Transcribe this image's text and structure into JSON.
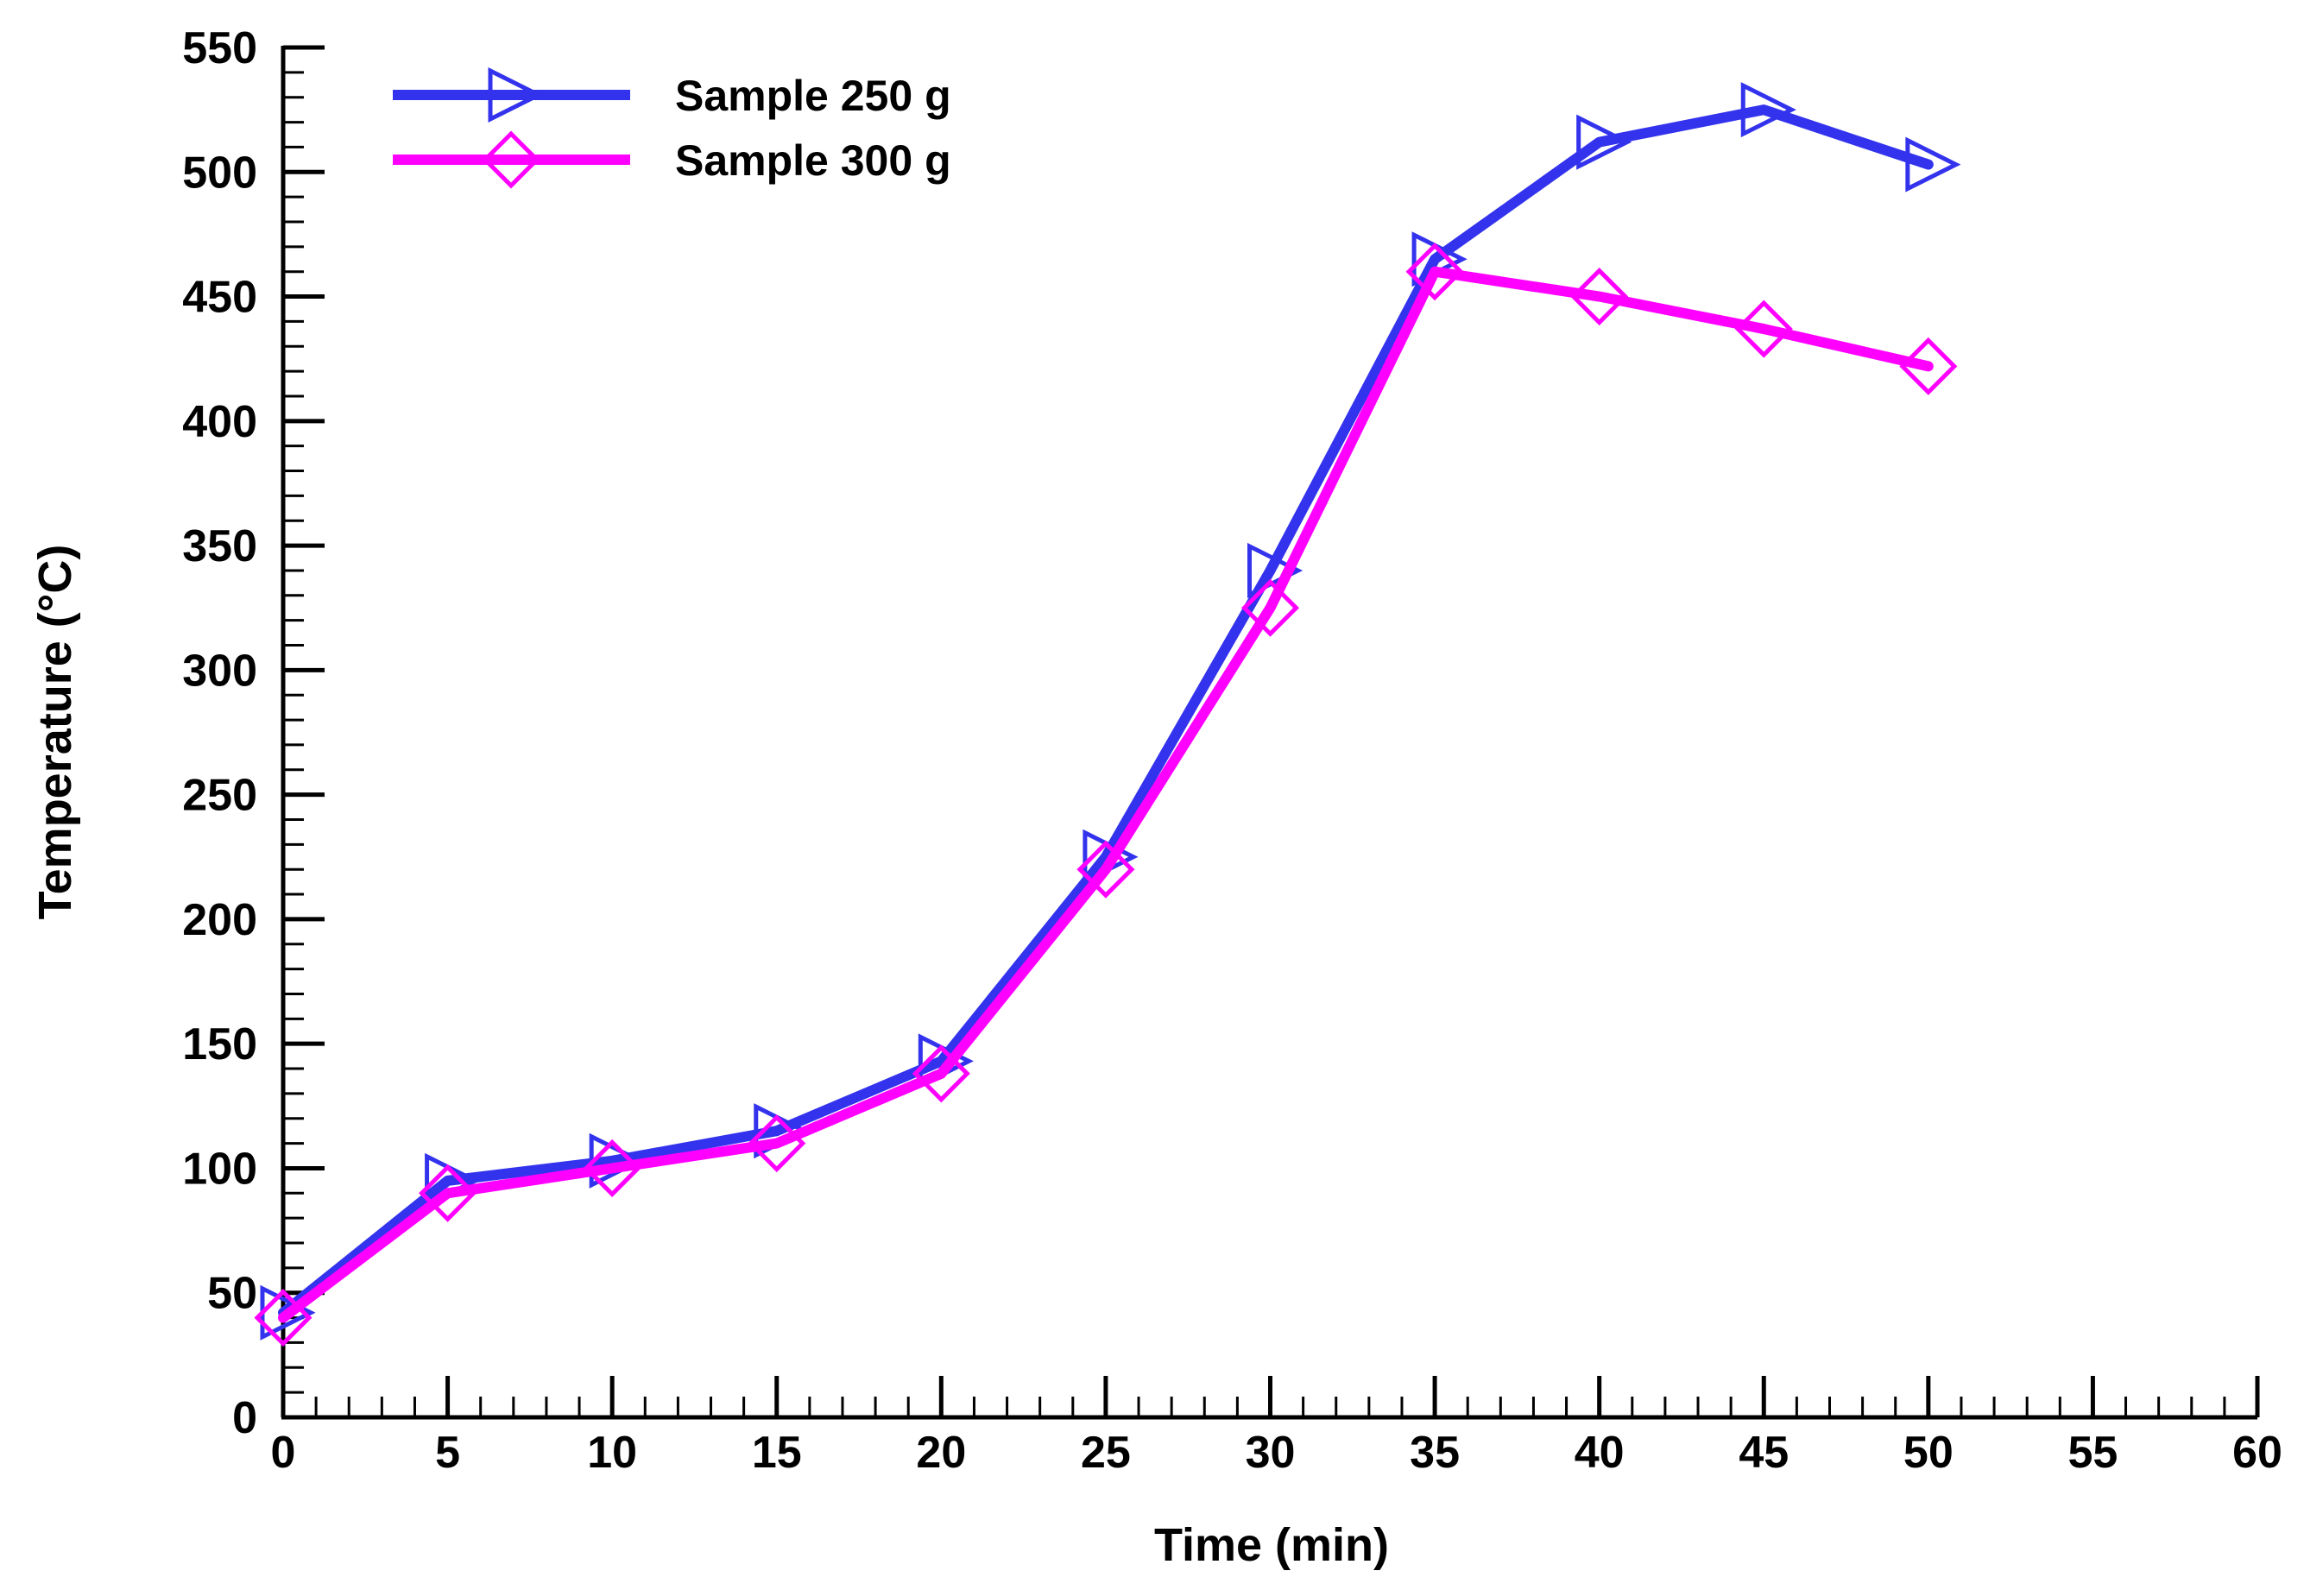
{
  "chart_data": {
    "type": "line",
    "title": "",
    "xlabel": "Time (min)",
    "ylabel": "Temperature (°C)",
    "xlim": [
      0,
      60
    ],
    "ylim": [
      0,
      550
    ],
    "xticks": [
      0,
      5,
      10,
      15,
      20,
      25,
      30,
      35,
      40,
      45,
      50,
      55,
      60
    ],
    "yticks": [
      0,
      50,
      100,
      150,
      200,
      250,
      300,
      350,
      400,
      450,
      500,
      550
    ],
    "x_minor_step": 1,
    "y_minor_step": 10,
    "grid": false,
    "legend_position": "top-left",
    "series": [
      {
        "name": "Sample 250 g",
        "color": "#3333ee",
        "marker": "triangle-right",
        "x": [
          0,
          5,
          10,
          15,
          20,
          25,
          30,
          35,
          40,
          45,
          50
        ],
        "y": [
          42,
          95,
          103,
          115,
          143,
          225,
          340,
          465,
          512,
          525,
          503
        ]
      },
      {
        "name": "Sample 300 g",
        "color": "#ff00ff",
        "marker": "diamond",
        "x": [
          0,
          5,
          10,
          15,
          20,
          25,
          30,
          35,
          40,
          45,
          50
        ],
        "y": [
          40,
          90,
          100,
          110,
          138,
          220,
          325,
          460,
          450,
          437,
          422
        ]
      }
    ]
  }
}
